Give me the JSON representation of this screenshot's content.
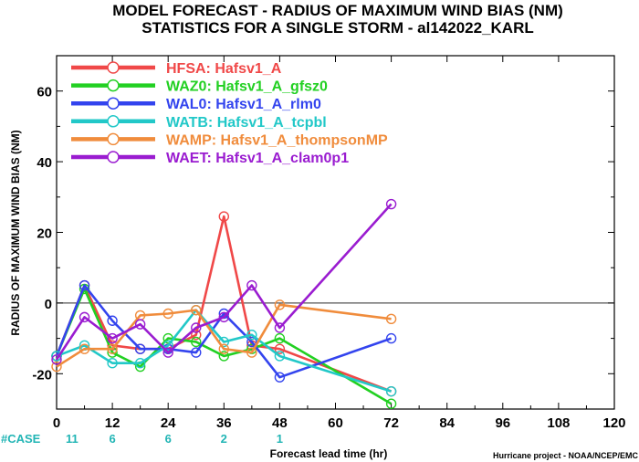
{
  "title_line1": "MODEL FORECAST - RADIUS OF MAXIMUM WIND BIAS (NM)",
  "title_line2": "STATISTICS FOR A SINGLE STORM - al142022_KARL",
  "credit": "Hurricane project - NOAA/NCEP/EMC",
  "case_label": "#CASE",
  "case_color": "#22b5b5",
  "chart_data": {
    "type": "line",
    "xlabel": "Forecast lead time (hr)",
    "ylabel": "RADIUS OF MAXIMUM WIND BIAS (NM)",
    "xlim": [
      0,
      120
    ],
    "ylim": [
      -30,
      70
    ],
    "xticks": [
      0,
      12,
      24,
      36,
      48,
      60,
      72,
      84,
      96,
      108,
      120
    ],
    "yticks": [
      -20,
      0,
      20,
      40,
      60
    ],
    "zero_line": true,
    "legend_position": "top-left",
    "case_counts": [
      {
        "x": 0,
        "label": "11"
      },
      {
        "x": 12,
        "label": "6"
      },
      {
        "x": 24,
        "label": "6"
      },
      {
        "x": 36,
        "label": "2"
      },
      {
        "x": 48,
        "label": "1"
      }
    ],
    "series": [
      {
        "name": "HFSA:",
        "model": "Hafsv1_A",
        "color": "#f04848",
        "x": [
          0,
          6,
          12,
          18,
          24,
          30,
          36,
          42,
          48,
          72
        ],
        "y": [
          -15,
          5,
          -12,
          -13,
          -13,
          -9,
          24.5,
          -12,
          -13,
          -25
        ]
      },
      {
        "name": "WAZ0:",
        "model": "Hafsv1_A_gfsz0",
        "color": "#22d022",
        "x": [
          0,
          6,
          12,
          18,
          24,
          30,
          36,
          42,
          48,
          72
        ],
        "y": [
          -15,
          4,
          -14,
          -18,
          -10,
          -11,
          -15,
          -13,
          -10,
          -28.5
        ]
      },
      {
        "name": "WAL0:",
        "model": "Hafsv1_A_rlm0",
        "color": "#3344ee",
        "x": [
          0,
          6,
          12,
          18,
          24,
          30,
          36,
          42,
          48,
          72
        ],
        "y": [
          -15,
          5,
          -5,
          -13,
          -13,
          -14,
          -3,
          -11,
          -21,
          -10
        ]
      },
      {
        "name": "WATB:",
        "model": "Hafsv1_A_tcpbl",
        "color": "#22c8c8",
        "x": [
          0,
          6,
          12,
          18,
          24,
          30,
          36,
          42,
          48,
          72
        ],
        "y": [
          -15,
          -12,
          -17,
          -17,
          -12,
          -2,
          -11,
          -9,
          -15,
          -25
        ]
      },
      {
        "name": "WAMP:",
        "model": "Hafsv1_A_thompsonMP",
        "color": "#f08c3c",
        "x": [
          0,
          6,
          12,
          18,
          24,
          30,
          36,
          42,
          48,
          72
        ],
        "y": [
          -18,
          -13,
          -13,
          -3.5,
          -3,
          -2,
          -13,
          -14,
          -0.5,
          -4.5
        ]
      },
      {
        "name": "WAET:",
        "model": "Hafsv1_A_clam0p1",
        "color": "#9a1cd0",
        "x": [
          0,
          6,
          12,
          18,
          24,
          30,
          36,
          42,
          48,
          72
        ],
        "y": [
          -16,
          -4,
          -10,
          -6,
          -14,
          -7,
          -4,
          5,
          -7,
          28
        ]
      }
    ]
  }
}
